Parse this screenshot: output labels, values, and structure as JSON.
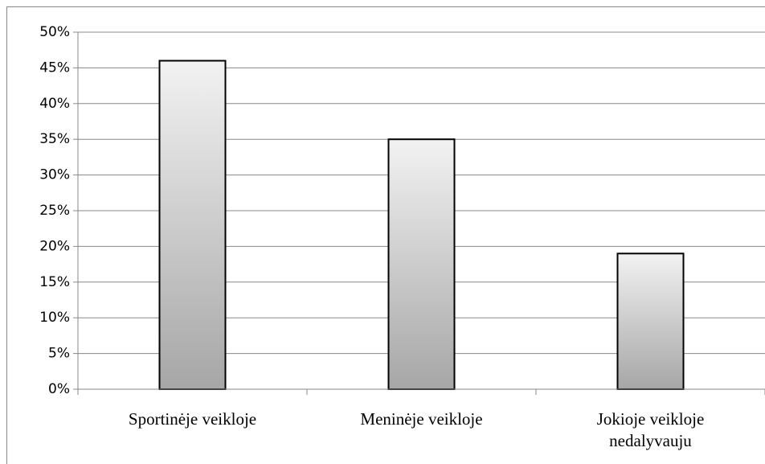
{
  "chart_data": {
    "type": "bar",
    "categories": [
      "Sportinėje veikloje",
      "Meninėje veikloje",
      "Jokioje veikloje nedalyvauju"
    ],
    "values": [
      46,
      35,
      19
    ],
    "ylim": [
      0,
      50
    ],
    "yticks": [
      {
        "value": 0,
        "label": "0%"
      },
      {
        "value": 5,
        "label": "5%"
      },
      {
        "value": 10,
        "label": "10%"
      },
      {
        "value": 15,
        "label": "15%"
      },
      {
        "value": 20,
        "label": "20%"
      },
      {
        "value": 25,
        "label": "25%"
      },
      {
        "value": 30,
        "label": "30%"
      },
      {
        "value": 35,
        "label": "35%"
      },
      {
        "value": 40,
        "label": "40%"
      },
      {
        "value": 45,
        "label": "45%"
      },
      {
        "value": 50,
        "label": "50%"
      }
    ],
    "grid": true
  }
}
